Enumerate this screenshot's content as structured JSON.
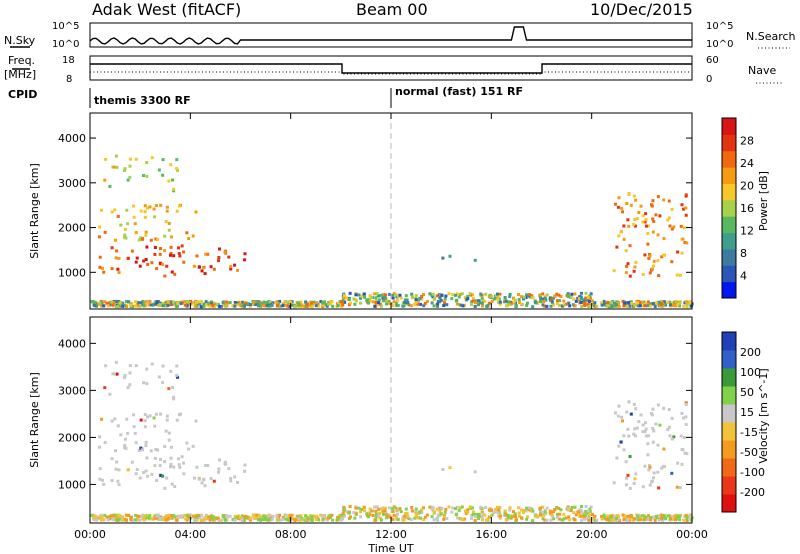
{
  "header": {
    "left": "Adak West (fitACF)",
    "center": "Beam 00",
    "right": "10/Dec/2015"
  },
  "top_panels": {
    "nsky_label": "N.Sky",
    "nsearch_label": "N.Search",
    "nsky_ticks": [
      "10^5",
      "10^0"
    ],
    "nsearch_ticks": [
      "10^5",
      "10^0"
    ],
    "freq_label_1": "Freq.",
    "freq_label_2": "[MHz]",
    "freq_ticks": [
      "18",
      "8"
    ],
    "nave_label": "Nave",
    "nave_ticks": [
      "60",
      "0"
    ],
    "cpid_label": "CPID",
    "cpid_segments": [
      "themis 3300 RF",
      "normal (fast) 151 RF"
    ]
  },
  "chart_data": [
    {
      "type": "heatmap",
      "name": "power",
      "ylabel": "Slant Range [km]",
      "xlabel": "",
      "yticks": [
        1000,
        2000,
        3000,
        4000
      ],
      "ylim": [
        180,
        4560
      ],
      "xlim_hours": [
        0,
        24
      ],
      "colorbar": {
        "label": "Power [dB]",
        "ticks": [
          4,
          8,
          12,
          16,
          20,
          24,
          28
        ],
        "range": [
          0,
          32
        ],
        "colors": [
          "#0018f0",
          "#2a56b8",
          "#3e7aa0",
          "#3f9f8c",
          "#58b860",
          "#a6d24a",
          "#f7c628",
          "#f59a12",
          "#f06810",
          "#e23312",
          "#d81414"
        ]
      },
      "scatter_regions": [
        {
          "t0": 0.3,
          "t1": 6.4,
          "r0": 900,
          "r1": 1600,
          "value": 27
        },
        {
          "t0": 0.3,
          "t1": 4.2,
          "r0": 1700,
          "r1": 2500,
          "value": 20
        },
        {
          "t0": 0.5,
          "t1": 3.5,
          "r0": 2800,
          "r1": 3600,
          "value": 16
        },
        {
          "t0": 20.8,
          "t1": 23.8,
          "r0": 900,
          "r1": 2800,
          "value": 24
        },
        {
          "t0": 13.8,
          "t1": 15.5,
          "r0": 1250,
          "r1": 1380,
          "value": 10
        }
      ]
    },
    {
      "type": "heatmap",
      "name": "velocity",
      "ylabel": "Slant Range [km]",
      "xlabel": "Time UT",
      "xticks": [
        "00:00",
        "04:00",
        "08:00",
        "12:00",
        "16:00",
        "20:00",
        "00:00"
      ],
      "yticks": [
        1000,
        2000,
        3000,
        4000
      ],
      "ylim": [
        180,
        4560
      ],
      "xlim_hours": [
        0,
        24
      ],
      "colorbar": {
        "label": "Velocity [m s^-1]",
        "ticks": [
          200,
          100,
          50,
          15,
          -15,
          -50,
          -100,
          -200
        ],
        "colors": [
          "#2040b8",
          "#3060c8",
          "#3a9a3a",
          "#7fd24a",
          "#c8c8c8",
          "#f2c23a",
          "#f49a20",
          "#f06818",
          "#e83818",
          "#e01010"
        ]
      }
    }
  ]
}
